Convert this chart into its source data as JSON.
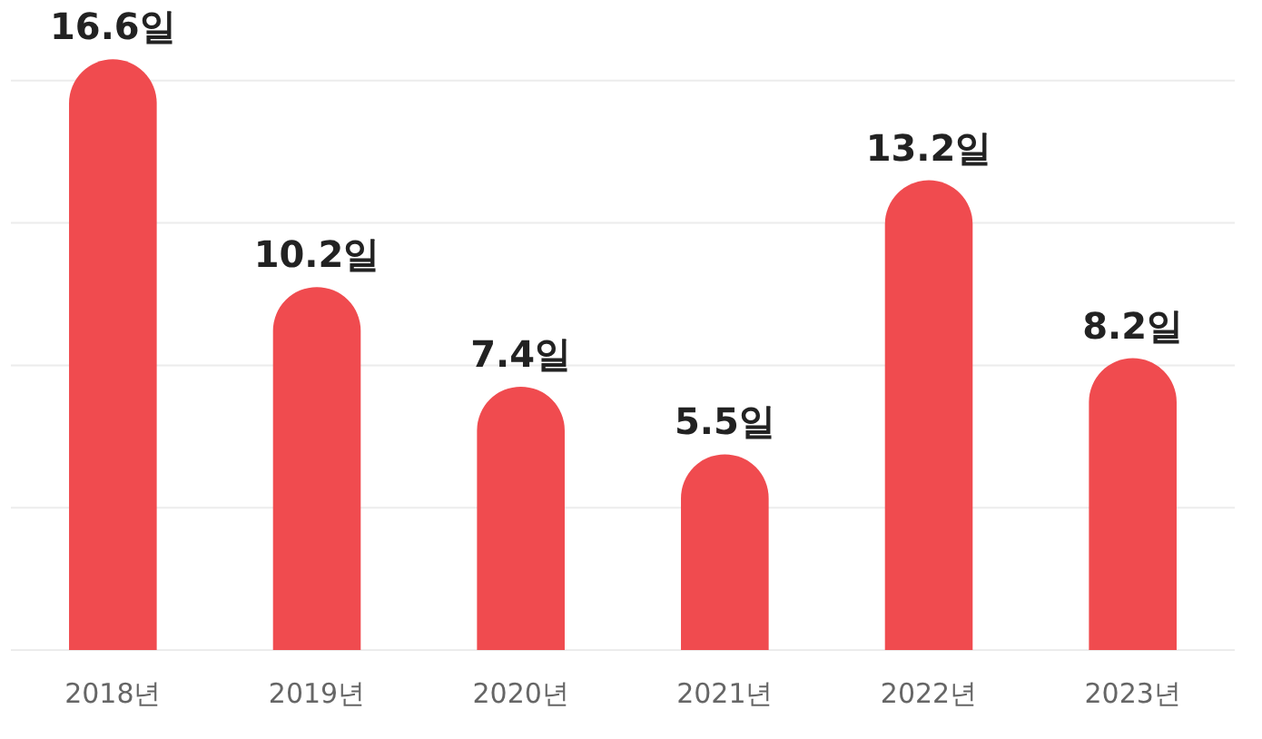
{
  "chart_data": {
    "type": "bar",
    "categories": [
      "2018년",
      "2019년",
      "2020년",
      "2021년",
      "2022년",
      "2023년"
    ],
    "values": [
      16.6,
      10.2,
      7.4,
      5.5,
      13.2,
      8.2
    ],
    "value_labels": [
      "16.6일",
      "10.2일",
      "7.4일",
      "5.5일",
      "13.2일",
      "8.2일"
    ],
    "color": "#f04b4f",
    "yticks": [
      {
        "value": 0,
        "label": null
      },
      {
        "value": 4,
        "label": null
      },
      {
        "value": 8,
        "label": null
      },
      {
        "value": 12,
        "label": null
      },
      {
        "value": 16,
        "label": null
      }
    ],
    "grid": "y",
    "tick_labels": "x"
  }
}
